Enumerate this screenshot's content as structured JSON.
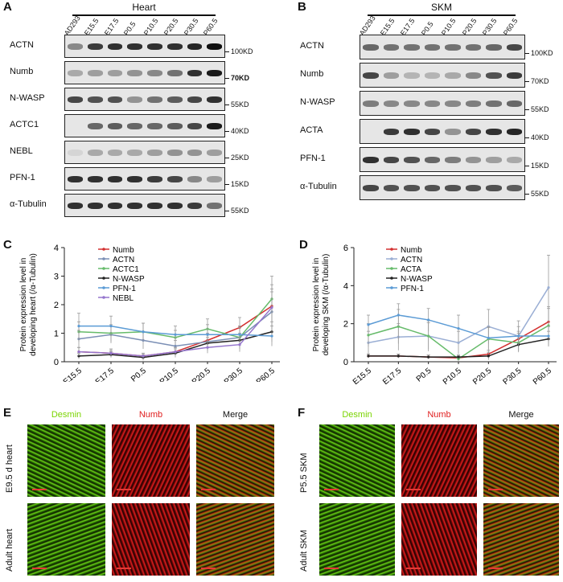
{
  "panels": {
    "A": "A",
    "B": "B",
    "C": "C",
    "D": "D",
    "E": "E",
    "F": "F"
  },
  "blotA": {
    "title": "Heart",
    "lanes": [
      "AD293",
      "E15.5",
      "E17.5",
      "P0.5",
      "P10.5",
      "P20.5",
      "P30.5",
      "P60.5"
    ],
    "rows": [
      {
        "label": "ACTN",
        "mw": "100KD",
        "mw_bold": false,
        "intensity": [
          0.45,
          0.8,
          0.85,
          0.85,
          0.85,
          0.85,
          0.9,
          1.0
        ]
      },
      {
        "label": "Numb",
        "mw": "70KD",
        "mw_bold": true,
        "intensity": [
          0.3,
          0.35,
          0.35,
          0.4,
          0.45,
          0.55,
          0.85,
          0.95
        ]
      },
      {
        "label": "N-WASP",
        "mw": "55KD",
        "mw_bold": false,
        "intensity": [
          0.75,
          0.7,
          0.7,
          0.4,
          0.55,
          0.65,
          0.75,
          0.85
        ]
      },
      {
        "label": "ACTC1",
        "mw": "40KD",
        "mw_bold": false,
        "intensity": [
          0.0,
          0.6,
          0.65,
          0.6,
          0.6,
          0.65,
          0.75,
          0.95
        ]
      },
      {
        "label": "NEBL",
        "mw": "25KD",
        "mw_bold": false,
        "intensity": [
          0.1,
          0.3,
          0.3,
          0.3,
          0.35,
          0.4,
          0.4,
          0.35
        ]
      },
      {
        "label": "PFN-1",
        "mw": "15KD",
        "mw_bold": false,
        "intensity": [
          0.85,
          0.85,
          0.85,
          0.85,
          0.8,
          0.75,
          0.45,
          0.35
        ]
      },
      {
        "label": "α-Tubulin",
        "mw": "55KD",
        "mw_bold": false,
        "intensity": [
          0.85,
          0.85,
          0.85,
          0.85,
          0.85,
          0.85,
          0.8,
          0.55
        ]
      }
    ]
  },
  "blotB": {
    "title": "SKM",
    "lanes": [
      "AD293",
      "E15.5",
      "E17.5",
      "P0.5",
      "P10.5",
      "P20.5",
      "P30.5",
      "P60.5"
    ],
    "rows": [
      {
        "label": "ACTN",
        "mw": "100KD",
        "mw_bold": false,
        "intensity": [
          0.6,
          0.55,
          0.55,
          0.55,
          0.55,
          0.55,
          0.6,
          0.75
        ]
      },
      {
        "label": "Numb",
        "mw": "70KD",
        "mw_bold": false,
        "intensity": [
          0.75,
          0.35,
          0.25,
          0.25,
          0.3,
          0.45,
          0.7,
          0.8
        ]
      },
      {
        "label": "N-WASP",
        "mw": "55KD",
        "mw_bold": false,
        "intensity": [
          0.5,
          0.45,
          0.45,
          0.45,
          0.45,
          0.5,
          0.55,
          0.6
        ]
      },
      {
        "label": "ACTA",
        "mw": "40KD",
        "mw_bold": false,
        "intensity": [
          0.0,
          0.8,
          0.85,
          0.75,
          0.4,
          0.75,
          0.85,
          0.9
        ]
      },
      {
        "label": "PFN-1",
        "mw": "15KD",
        "mw_bold": false,
        "intensity": [
          0.85,
          0.75,
          0.7,
          0.6,
          0.5,
          0.4,
          0.35,
          0.3
        ]
      },
      {
        "label": "α-Tubulin",
        "mw": "55KD",
        "mw_bold": false,
        "intensity": [
          0.75,
          0.7,
          0.7,
          0.7,
          0.7,
          0.7,
          0.7,
          0.65
        ]
      }
    ]
  },
  "chart_data": [
    {
      "type": "line",
      "panel": "C",
      "categories": [
        "E15.5",
        "E17.5",
        "P0.5",
        "P10.5",
        "P20.5",
        "P30.5",
        "P60.5"
      ],
      "ylabel": "Protein expression level in developing heart (/α-Tubulin)",
      "ylim": [
        0,
        4
      ],
      "yticks": [
        0,
        1,
        2,
        3,
        4
      ],
      "legend": "top-left",
      "series": [
        {
          "name": "Numb",
          "color": "#d32f2f",
          "values": [
            0.35,
            0.3,
            0.2,
            0.35,
            0.75,
            1.2,
            1.95
          ],
          "errors": [
            0.15,
            0.1,
            0.1,
            0.15,
            0.2,
            0.35,
            0.6
          ]
        },
        {
          "name": "ACTN",
          "color": "#7b8fb5",
          "values": [
            0.8,
            0.95,
            0.75,
            0.55,
            0.7,
            0.85,
            1.75
          ],
          "errors": [
            0.3,
            0.3,
            0.3,
            0.2,
            0.3,
            0.35,
            0.7
          ]
        },
        {
          "name": "ACTC1",
          "color": "#66bb6a",
          "values": [
            1.05,
            1.0,
            1.05,
            0.85,
            1.15,
            0.85,
            2.2
          ],
          "errors": [
            0.35,
            0.3,
            0.3,
            0.25,
            0.35,
            0.4,
            0.8
          ]
        },
        {
          "name": "N-WASP",
          "color": "#222222",
          "values": [
            0.2,
            0.25,
            0.15,
            0.3,
            0.65,
            0.75,
            1.05
          ],
          "errors": [
            0.1,
            0.1,
            0.1,
            0.15,
            0.2,
            0.25,
            0.35
          ]
        },
        {
          "name": "PFN-1",
          "color": "#5b9bd5",
          "values": [
            1.25,
            1.25,
            1.05,
            0.95,
            0.95,
            0.95,
            0.9
          ],
          "errors": [
            0.45,
            0.35,
            0.3,
            0.3,
            0.35,
            0.3,
            0.35
          ]
        },
        {
          "name": "NEBL",
          "color": "#9575cd",
          "values": [
            0.35,
            0.3,
            0.2,
            0.35,
            0.5,
            0.6,
            1.9
          ],
          "errors": [
            0.15,
            0.15,
            0.1,
            0.15,
            0.2,
            0.25,
            0.8
          ]
        }
      ]
    },
    {
      "type": "line",
      "panel": "D",
      "categories": [
        "E15.5",
        "E17.5",
        "P0.5",
        "P10.5",
        "P20.5",
        "P30.5",
        "P60.5"
      ],
      "ylabel": "Protein expression level in developing SKM (/α-Tubulin)",
      "ylim": [
        0,
        6
      ],
      "yticks": [
        0,
        2,
        4,
        6
      ],
      "legend": "top-left",
      "series": [
        {
          "name": "Numb",
          "color": "#d32f2f",
          "values": [
            0.3,
            0.3,
            0.25,
            0.2,
            0.4,
            1.2,
            2.1
          ],
          "errors": [
            0.1,
            0.1,
            0.1,
            0.1,
            0.2,
            0.4,
            0.8
          ]
        },
        {
          "name": "ACTN",
          "color": "#9aaed4",
          "values": [
            1.0,
            1.3,
            1.35,
            1.0,
            1.85,
            1.35,
            3.9
          ],
          "errors": [
            0.6,
            0.7,
            0.8,
            0.6,
            0.9,
            0.8,
            1.7
          ]
        },
        {
          "name": "ACTA",
          "color": "#66bb6a",
          "values": [
            1.4,
            1.85,
            1.35,
            0.15,
            1.2,
            1.0,
            1.9
          ],
          "errors": [
            0.6,
            0.9,
            0.7,
            0.2,
            0.6,
            0.5,
            0.9
          ]
        },
        {
          "name": "N-WASP",
          "color": "#222222",
          "values": [
            0.3,
            0.3,
            0.25,
            0.25,
            0.3,
            0.9,
            1.2
          ],
          "errors": [
            0.1,
            0.1,
            0.1,
            0.1,
            0.2,
            0.3,
            0.4
          ]
        },
        {
          "name": "PFN-1",
          "color": "#5b9bd5",
          "values": [
            1.95,
            2.45,
            2.2,
            1.75,
            1.25,
            1.35,
            1.35
          ],
          "errors": [
            0.5,
            0.6,
            0.6,
            0.7,
            0.6,
            0.5,
            0.5
          ]
        }
      ]
    }
  ],
  "microE": {
    "headers": [
      "Desmin",
      "Numb",
      "Merge"
    ],
    "header_colors": [
      "#7ad400",
      "#e02020",
      "#111111"
    ],
    "rows": [
      "E9.5 d heart",
      "Adult heart"
    ]
  },
  "microF": {
    "headers": [
      "Desmin",
      "Numb",
      "Merge"
    ],
    "header_colors": [
      "#7ad400",
      "#e02020",
      "#111111"
    ],
    "rows": [
      "P5.5 SKM",
      "Adult SKM"
    ]
  }
}
